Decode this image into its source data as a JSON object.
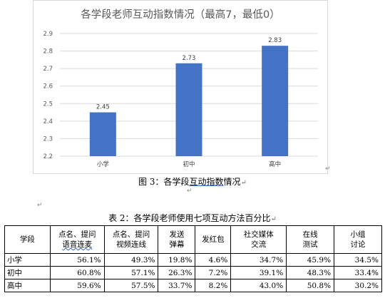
{
  "chart_data": {
    "type": "bar",
    "title": "各学段老师互动指数情况（最高7，最低0）",
    "categories": [
      "小学",
      "初中",
      "高中"
    ],
    "values": [
      2.45,
      2.73,
      2.83
    ],
    "value_labels": [
      "2.45",
      "2.73",
      "2.83"
    ],
    "ylim": [
      2.2,
      2.9
    ],
    "yticks": [
      "2.2",
      "2.3",
      "2.4",
      "2.5",
      "2.6",
      "2.7",
      "2.8",
      "2.9"
    ],
    "grid": true,
    "bar_color": "#4472c4"
  },
  "figure_caption": {
    "prefix": "图 3：各学段",
    "underlined": "互动指数",
    "suffix": "情况"
  },
  "marks": {
    "paragraph": "↵",
    "small": "↵"
  },
  "table": {
    "caption": "表 2：各学段老师使用七项互动方法百分比",
    "headers": [
      [
        "学段"
      ],
      [
        "点名、提问",
        "语音连麦"
      ],
      [
        "点名、提问",
        "视频连线"
      ],
      [
        "发送",
        "弹幕"
      ],
      [
        "发红包"
      ],
      [
        "社交媒体",
        "交流"
      ],
      [
        "在线",
        "测试"
      ],
      [
        "小组",
        "讨论"
      ]
    ],
    "rows": [
      {
        "label": "小学",
        "cells": [
          "56.1%",
          "49.3%",
          "19.8%",
          "4.6%",
          "34.7%",
          "45.9%",
          "34.5%"
        ]
      },
      {
        "label": "初中",
        "cells": [
          "60.8%",
          "57.1%",
          "26.3%",
          "7.2%",
          "39.1%",
          "48.3%",
          "33.4%"
        ]
      },
      {
        "label": "高中",
        "cells": [
          "59.6%",
          "57.5%",
          "33.7%",
          "8.2%",
          "43.0%",
          "50.8%",
          "30.2%"
        ]
      }
    ]
  }
}
